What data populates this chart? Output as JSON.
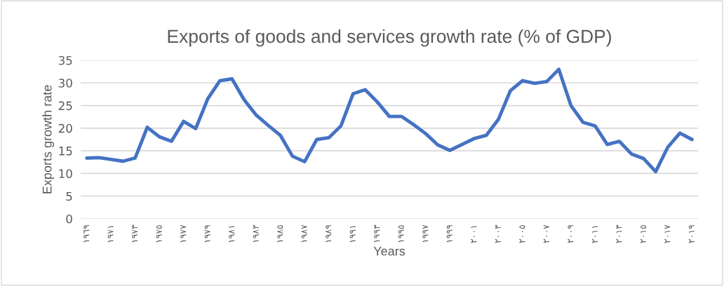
{
  "chart_data": {
    "type": "line",
    "title": "Exports of goods and services growth rate (% of GDP)",
    "xlabel": "Years",
    "ylabel": "Exports growth rate",
    "categories": [
      "١٩٦٩",
      null,
      "١٩٧١",
      null,
      "١٩٧٣",
      null,
      "١٩٧٥",
      null,
      "١٩٧٧",
      null,
      "١٩٧٩",
      null,
      "١٩٨١",
      null,
      "١٩٨٣",
      null,
      "١٩٨٥",
      null,
      "١٩٨٧",
      null,
      "١٩٨٩",
      null,
      "١٩٩١",
      null,
      "١٩٩٣",
      null,
      "١٩٩٥",
      null,
      "١٩٩٧",
      null,
      "١٩٩٩",
      null,
      "٢٠٠١",
      null,
      "٢٠٠٣",
      null,
      "٢٠٠٥",
      null,
      "٢٠٠٧",
      null,
      "٢٠٠٩",
      null,
      "٢٠١١",
      null,
      "٢٠١٣",
      null,
      "٢٠١٥",
      null,
      "٢٠١٧",
      null,
      "٢٠١٩"
    ],
    "series": [
      {
        "color": "#4472c4",
        "values": [
          13.4,
          13.5,
          13.1,
          12.7,
          13.4,
          20.2,
          18.1,
          17.1,
          21.5,
          19.9,
          26.5,
          30.5,
          30.9,
          26.3,
          22.9,
          20.6,
          18.4,
          13.8,
          12.6,
          17.5,
          17.9,
          20.5,
          27.6,
          28.5,
          25.8,
          22.6,
          22.6,
          20.8,
          18.8,
          16.3,
          15.1,
          16.4,
          17.7,
          18.4,
          21.9,
          28.3,
          30.5,
          29.9,
          30.3,
          33.0,
          25.0,
          21.3,
          20.5,
          16.4,
          17.1,
          14.3,
          13.3,
          10.4,
          15.8,
          18.9,
          17.5
        ]
      }
    ],
    "ylim": [
      0,
      35
    ],
    "yticks": [
      0,
      5,
      10,
      15,
      20,
      25,
      30,
      35
    ],
    "grid": "y",
    "legend": false,
    "marker": "none",
    "line_style": "solid"
  }
}
